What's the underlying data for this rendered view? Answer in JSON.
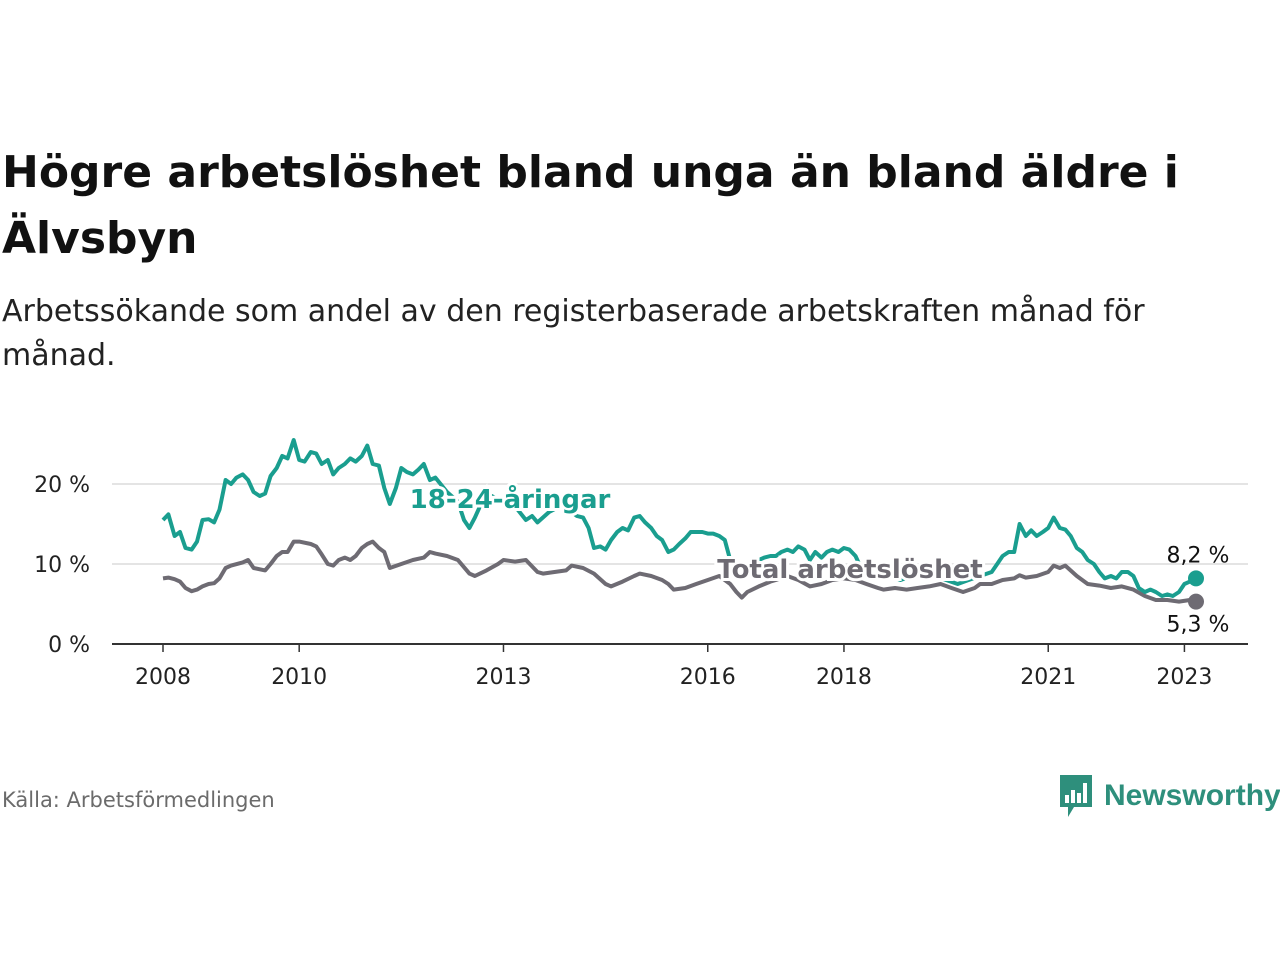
{
  "title": "Högre arbetslöshet bland unga än bland äldre i Älvsbyn",
  "subtitle": "Arbetssökande som andel av den registerbaserade arbetskraften månad för månad.",
  "source": "Källa: Arbetsförmedlingen",
  "brand": {
    "name": "Newsworthy",
    "icon": "bar-chart-speech-icon",
    "color": "#2e8f7c"
  },
  "chart_data": {
    "type": "line",
    "x_range": [
      2008.0,
      2023.17
    ],
    "ylim": [
      0,
      27
    ],
    "y_ticks": [
      0,
      10,
      20
    ],
    "y_tick_labels": [
      "0 %",
      "10 %",
      "20 %"
    ],
    "x_ticks": [
      2008,
      2010,
      2013,
      2016,
      2018,
      2021,
      2023
    ],
    "x_tick_labels": [
      "2008",
      "2010",
      "2013",
      "2016",
      "2018",
      "2021",
      "2023"
    ],
    "grid": "horizontal",
    "series": [
      {
        "name": "18–24-åringar",
        "label": "18-24-åringar",
        "color": "#1a9e8f",
        "end_label": "8,2 %",
        "points": [
          [
            2008.0,
            15.5
          ],
          [
            2008.08,
            16.2
          ],
          [
            2008.17,
            13.5
          ],
          [
            2008.25,
            14.0
          ],
          [
            2008.33,
            12.0
          ],
          [
            2008.42,
            11.8
          ],
          [
            2008.5,
            12.8
          ],
          [
            2008.58,
            15.5
          ],
          [
            2008.67,
            15.6
          ],
          [
            2008.75,
            15.2
          ],
          [
            2008.83,
            16.8
          ],
          [
            2008.92,
            20.5
          ],
          [
            2009.0,
            20.0
          ],
          [
            2009.08,
            20.8
          ],
          [
            2009.17,
            21.2
          ],
          [
            2009.25,
            20.5
          ],
          [
            2009.33,
            19.0
          ],
          [
            2009.42,
            18.5
          ],
          [
            2009.5,
            18.8
          ],
          [
            2009.58,
            21.0
          ],
          [
            2009.67,
            22.0
          ],
          [
            2009.75,
            23.5
          ],
          [
            2009.83,
            23.2
          ],
          [
            2009.92,
            25.5
          ],
          [
            2010.0,
            23.0
          ],
          [
            2010.08,
            22.8
          ],
          [
            2010.17,
            24.0
          ],
          [
            2010.25,
            23.8
          ],
          [
            2010.33,
            22.5
          ],
          [
            2010.42,
            23.0
          ],
          [
            2010.5,
            21.2
          ],
          [
            2010.58,
            22.0
          ],
          [
            2010.67,
            22.5
          ],
          [
            2010.75,
            23.2
          ],
          [
            2010.83,
            22.8
          ],
          [
            2010.92,
            23.5
          ],
          [
            2011.0,
            24.8
          ],
          [
            2011.08,
            22.5
          ],
          [
            2011.17,
            22.3
          ],
          [
            2011.25,
            19.5
          ],
          [
            2011.33,
            17.5
          ],
          [
            2011.42,
            19.5
          ],
          [
            2011.5,
            22.0
          ],
          [
            2011.58,
            21.5
          ],
          [
            2011.67,
            21.2
          ],
          [
            2011.75,
            21.8
          ],
          [
            2011.83,
            22.5
          ],
          [
            2011.92,
            20.5
          ],
          [
            2012.0,
            20.8
          ],
          [
            2012.17,
            19.0
          ],
          [
            2012.33,
            17.8
          ],
          [
            2012.42,
            15.5
          ],
          [
            2012.5,
            14.5
          ],
          [
            2012.58,
            15.8
          ],
          [
            2012.67,
            17.5
          ],
          [
            2012.83,
            18.5
          ],
          [
            2013.0,
            17.5
          ],
          [
            2013.17,
            17.2
          ],
          [
            2013.33,
            15.5
          ],
          [
            2013.42,
            16.0
          ],
          [
            2013.5,
            15.2
          ],
          [
            2013.67,
            16.5
          ],
          [
            2013.83,
            17.2
          ],
          [
            2014.0,
            16.5
          ],
          [
            2014.08,
            16.0
          ],
          [
            2014.17,
            15.8
          ],
          [
            2014.25,
            14.5
          ],
          [
            2014.33,
            12.0
          ],
          [
            2014.42,
            12.2
          ],
          [
            2014.5,
            11.8
          ],
          [
            2014.58,
            13.0
          ],
          [
            2014.67,
            14.0
          ],
          [
            2014.75,
            14.5
          ],
          [
            2014.83,
            14.2
          ],
          [
            2014.92,
            15.8
          ],
          [
            2015.0,
            16.0
          ],
          [
            2015.08,
            15.2
          ],
          [
            2015.17,
            14.5
          ],
          [
            2015.25,
            13.5
          ],
          [
            2015.33,
            13.0
          ],
          [
            2015.42,
            11.5
          ],
          [
            2015.5,
            11.8
          ],
          [
            2015.58,
            12.5
          ],
          [
            2015.67,
            13.2
          ],
          [
            2015.75,
            14.0
          ],
          [
            2015.83,
            14.0
          ],
          [
            2015.92,
            14.0
          ],
          [
            2016.0,
            13.8
          ],
          [
            2016.08,
            13.8
          ],
          [
            2016.17,
            13.5
          ],
          [
            2016.25,
            13.0
          ],
          [
            2016.33,
            10.5
          ],
          [
            2016.42,
            9.0
          ],
          [
            2016.5,
            8.2
          ],
          [
            2016.58,
            8.5
          ],
          [
            2016.67,
            9.5
          ],
          [
            2016.75,
            10.5
          ],
          [
            2016.83,
            10.8
          ],
          [
            2016.92,
            11.0
          ],
          [
            2017.0,
            11.0
          ],
          [
            2017.08,
            11.5
          ],
          [
            2017.17,
            11.8
          ],
          [
            2017.25,
            11.5
          ],
          [
            2017.33,
            12.2
          ],
          [
            2017.42,
            11.8
          ],
          [
            2017.5,
            10.5
          ],
          [
            2017.58,
            11.5
          ],
          [
            2017.67,
            10.8
          ],
          [
            2017.75,
            11.5
          ],
          [
            2017.83,
            11.8
          ],
          [
            2017.92,
            11.5
          ],
          [
            2018.0,
            12.0
          ],
          [
            2018.08,
            11.8
          ],
          [
            2018.17,
            11.0
          ],
          [
            2018.25,
            9.5
          ],
          [
            2018.33,
            8.5
          ],
          [
            2018.5,
            8.8
          ],
          [
            2018.67,
            8.5
          ],
          [
            2018.83,
            8.0
          ],
          [
            2019.0,
            8.5
          ],
          [
            2019.17,
            9.0
          ],
          [
            2019.33,
            8.5
          ],
          [
            2019.5,
            8.0
          ],
          [
            2019.67,
            7.5
          ],
          [
            2019.83,
            8.0
          ],
          [
            2020.0,
            8.5
          ],
          [
            2020.17,
            9.0
          ],
          [
            2020.25,
            10.0
          ],
          [
            2020.33,
            11.0
          ],
          [
            2020.42,
            11.5
          ],
          [
            2020.5,
            11.5
          ],
          [
            2020.58,
            15.0
          ],
          [
            2020.67,
            13.5
          ],
          [
            2020.75,
            14.2
          ],
          [
            2020.83,
            13.5
          ],
          [
            2020.92,
            14.0
          ],
          [
            2021.0,
            14.5
          ],
          [
            2021.08,
            15.8
          ],
          [
            2021.17,
            14.5
          ],
          [
            2021.25,
            14.3
          ],
          [
            2021.33,
            13.5
          ],
          [
            2021.42,
            12.0
          ],
          [
            2021.5,
            11.5
          ],
          [
            2021.58,
            10.5
          ],
          [
            2021.67,
            10.0
          ],
          [
            2021.75,
            9.0
          ],
          [
            2021.83,
            8.2
          ],
          [
            2021.92,
            8.5
          ],
          [
            2022.0,
            8.2
          ],
          [
            2022.08,
            9.0
          ],
          [
            2022.17,
            9.0
          ],
          [
            2022.25,
            8.5
          ],
          [
            2022.33,
            7.0
          ],
          [
            2022.42,
            6.5
          ],
          [
            2022.5,
            6.8
          ],
          [
            2022.58,
            6.5
          ],
          [
            2022.67,
            6.0
          ],
          [
            2022.75,
            6.2
          ],
          [
            2022.83,
            6.0
          ],
          [
            2022.92,
            6.5
          ],
          [
            2023.0,
            7.5
          ],
          [
            2023.08,
            7.8
          ],
          [
            2023.17,
            8.2
          ]
        ]
      },
      {
        "name": "Total arbetslöshet",
        "label": "Total arbetslöshet",
        "color": "#6e6b73",
        "end_label": "5,3 %",
        "points": [
          [
            2008.0,
            8.2
          ],
          [
            2008.08,
            8.3
          ],
          [
            2008.17,
            8.1
          ],
          [
            2008.25,
            7.8
          ],
          [
            2008.33,
            7.0
          ],
          [
            2008.42,
            6.6
          ],
          [
            2008.5,
            6.8
          ],
          [
            2008.58,
            7.2
          ],
          [
            2008.67,
            7.5
          ],
          [
            2008.75,
            7.6
          ],
          [
            2008.83,
            8.2
          ],
          [
            2008.92,
            9.5
          ],
          [
            2009.0,
            9.8
          ],
          [
            2009.17,
            10.2
          ],
          [
            2009.25,
            10.5
          ],
          [
            2009.33,
            9.5
          ],
          [
            2009.5,
            9.2
          ],
          [
            2009.58,
            10.0
          ],
          [
            2009.67,
            11.0
          ],
          [
            2009.75,
            11.5
          ],
          [
            2009.83,
            11.5
          ],
          [
            2009.92,
            12.8
          ],
          [
            2010.0,
            12.8
          ],
          [
            2010.17,
            12.5
          ],
          [
            2010.25,
            12.2
          ],
          [
            2010.33,
            11.2
          ],
          [
            2010.42,
            10.0
          ],
          [
            2010.5,
            9.8
          ],
          [
            2010.58,
            10.5
          ],
          [
            2010.67,
            10.8
          ],
          [
            2010.75,
            10.5
          ],
          [
            2010.83,
            11.0
          ],
          [
            2010.92,
            12.0
          ],
          [
            2011.0,
            12.5
          ],
          [
            2011.08,
            12.8
          ],
          [
            2011.17,
            12.0
          ],
          [
            2011.25,
            11.5
          ],
          [
            2011.33,
            9.5
          ],
          [
            2011.5,
            10.0
          ],
          [
            2011.67,
            10.5
          ],
          [
            2011.83,
            10.8
          ],
          [
            2011.92,
            11.5
          ],
          [
            2012.0,
            11.3
          ],
          [
            2012.17,
            11.0
          ],
          [
            2012.33,
            10.5
          ],
          [
            2012.5,
            8.8
          ],
          [
            2012.58,
            8.5
          ],
          [
            2012.75,
            9.2
          ],
          [
            2012.92,
            10.0
          ],
          [
            2013.0,
            10.5
          ],
          [
            2013.17,
            10.3
          ],
          [
            2013.33,
            10.5
          ],
          [
            2013.5,
            9.0
          ],
          [
            2013.58,
            8.8
          ],
          [
            2013.75,
            9.0
          ],
          [
            2013.92,
            9.2
          ],
          [
            2014.0,
            9.8
          ],
          [
            2014.17,
            9.5
          ],
          [
            2014.33,
            8.8
          ],
          [
            2014.5,
            7.5
          ],
          [
            2014.58,
            7.2
          ],
          [
            2014.75,
            7.8
          ],
          [
            2014.92,
            8.5
          ],
          [
            2015.0,
            8.8
          ],
          [
            2015.17,
            8.5
          ],
          [
            2015.33,
            8.0
          ],
          [
            2015.42,
            7.5
          ],
          [
            2015.5,
            6.8
          ],
          [
            2015.67,
            7.0
          ],
          [
            2015.83,
            7.5
          ],
          [
            2016.0,
            8.0
          ],
          [
            2016.17,
            8.5
          ],
          [
            2016.33,
            7.5
          ],
          [
            2016.42,
            6.5
          ],
          [
            2016.5,
            5.8
          ],
          [
            2016.58,
            6.5
          ],
          [
            2016.75,
            7.2
          ],
          [
            2016.92,
            7.8
          ],
          [
            2017.0,
            8.0
          ],
          [
            2017.17,
            8.5
          ],
          [
            2017.33,
            8.0
          ],
          [
            2017.5,
            7.2
          ],
          [
            2017.67,
            7.5
          ],
          [
            2017.83,
            8.0
          ],
          [
            2018.0,
            8.2
          ],
          [
            2018.17,
            8.0
          ],
          [
            2018.33,
            7.5
          ],
          [
            2018.5,
            7.0
          ],
          [
            2018.58,
            6.8
          ],
          [
            2018.75,
            7.0
          ],
          [
            2018.92,
            6.8
          ],
          [
            2019.08,
            7.0
          ],
          [
            2019.25,
            7.2
          ],
          [
            2019.42,
            7.5
          ],
          [
            2019.58,
            7.0
          ],
          [
            2019.75,
            6.5
          ],
          [
            2019.92,
            7.0
          ],
          [
            2020.0,
            7.5
          ],
          [
            2020.17,
            7.5
          ],
          [
            2020.33,
            8.0
          ],
          [
            2020.5,
            8.2
          ],
          [
            2020.58,
            8.6
          ],
          [
            2020.67,
            8.3
          ],
          [
            2020.83,
            8.5
          ],
          [
            2021.0,
            9.0
          ],
          [
            2021.08,
            9.8
          ],
          [
            2021.17,
            9.5
          ],
          [
            2021.25,
            9.8
          ],
          [
            2021.42,
            8.5
          ],
          [
            2021.58,
            7.5
          ],
          [
            2021.75,
            7.3
          ],
          [
            2021.92,
            7.0
          ],
          [
            2022.08,
            7.2
          ],
          [
            2022.25,
            6.8
          ],
          [
            2022.42,
            6.0
          ],
          [
            2022.58,
            5.5
          ],
          [
            2022.75,
            5.5
          ],
          [
            2022.92,
            5.3
          ],
          [
            2023.08,
            5.5
          ],
          [
            2023.17,
            5.3
          ]
        ]
      }
    ]
  }
}
